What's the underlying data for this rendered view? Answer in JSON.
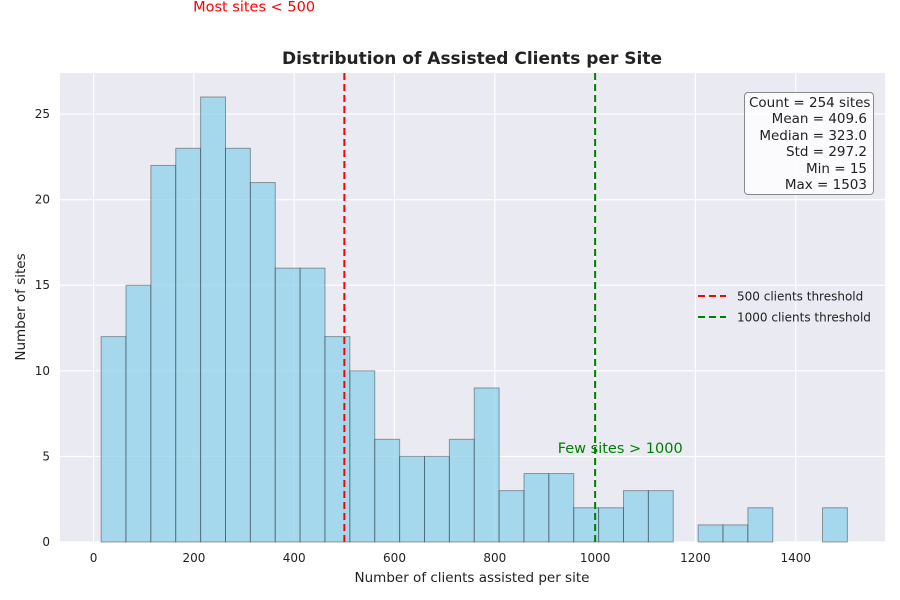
{
  "chart_data": {
    "type": "bar",
    "title": "Distribution of Assisted Clients per Site",
    "xlabel": "Number of clients assisted per site",
    "ylabel": "Number of sites",
    "xlim": [
      -67,
      1578
    ],
    "ylim": [
      0,
      27.4
    ],
    "xticks": [
      0,
      200,
      400,
      600,
      800,
      1000,
      1200,
      1400
    ],
    "yticks": [
      0,
      5,
      10,
      15,
      20,
      25
    ],
    "grid": true,
    "bin_edges": [
      15,
      64.6,
      114.2,
      163.8,
      213.4,
      263,
      312.6,
      362.2,
      411.8,
      461.4,
      511,
      560.6,
      610.2,
      659.8,
      709.4,
      759,
      808.6,
      858.2,
      907.8,
      957.4,
      1007,
      1056.6,
      1106.2,
      1155.8,
      1205.4,
      1255,
      1304.6,
      1354.2,
      1403.8,
      1453.4,
      1503
    ],
    "counts": [
      12,
      15,
      22,
      23,
      26,
      23,
      21,
      16,
      16,
      12,
      10,
      6,
      5,
      5,
      6,
      9,
      3,
      4,
      4,
      2,
      2,
      3,
      3,
      0,
      1,
      1,
      2,
      0,
      0,
      2
    ],
    "bar_color": "#87ceeb",
    "thresholds": [
      {
        "value": 500,
        "label": "500 clients threshold",
        "color": "#ff0000"
      },
      {
        "value": 1000,
        "label": "1000 clients threshold",
        "color": "#008000"
      }
    ],
    "legend_position": "center-right",
    "annotations": [
      {
        "text": "Most sites < 500",
        "x": 320,
        "y": 31,
        "color": "#ff0000"
      },
      {
        "text": "Few sites > 1000",
        "x": 1050,
        "y": 5.2,
        "color": "#008000"
      }
    ],
    "stats": [
      "Count = 254 sites",
      "Mean = 409.6",
      "Median = 323.0",
      "Std = 297.2",
      "Min = 15",
      "Max = 1503"
    ]
  }
}
